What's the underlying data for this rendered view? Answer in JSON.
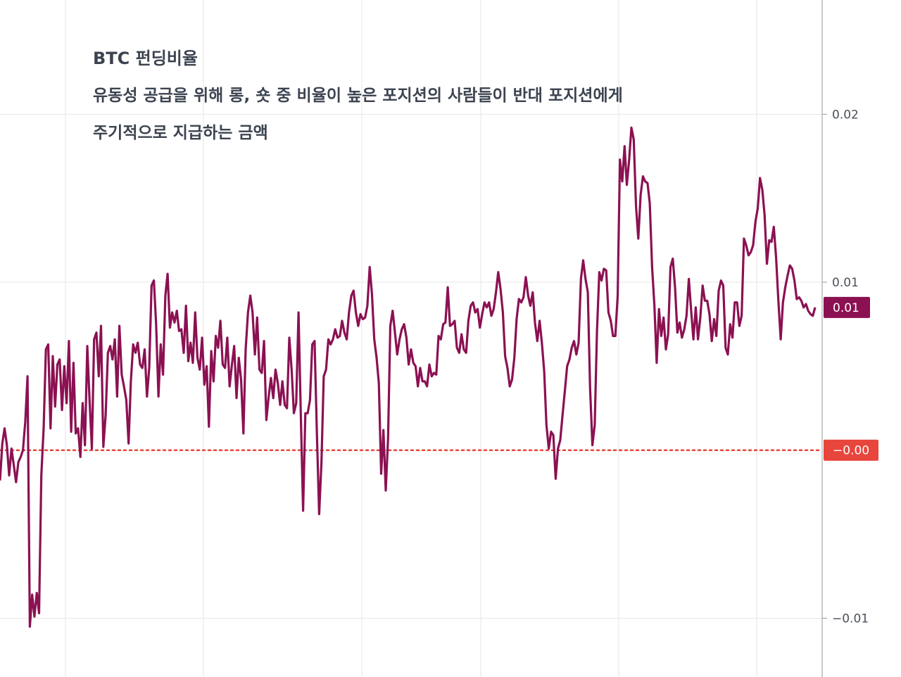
{
  "chart_data": {
    "type": "line",
    "title": "BTC 펀딩비율",
    "subtitle_lines": [
      "유동성 공급을 위해 롱, 숏 중 비율이 높은 포지션의 사람들이 반대 포지션에게",
      "주기적으로 지급하는 금액"
    ],
    "y_ticks": [
      0.02,
      0.01,
      -0.01
    ],
    "y_tick_labels": [
      "0.02",
      "0.01",
      "−0.01"
    ],
    "ylim": [
      -0.0135,
      0.0268
    ],
    "grid": true,
    "current_value": 0.0085,
    "current_value_label": "0.01",
    "reference_value": 0.0,
    "reference_label": "−0.00",
    "colors": {
      "line": "#8b1152",
      "badge": "#8b1152",
      "reference": "#e8453c",
      "grid": "#e6e6e6",
      "axis": "#9a9a9a"
    },
    "series": [
      {
        "values": [
          -0.0018,
          0.0004,
          0.0013,
          0.0003,
          -0.0015,
          0.0001,
          -0.0009,
          -0.0019,
          -0.0007,
          -0.0004,
          0.0,
          0.0017,
          0.0044,
          -0.0105,
          -0.0086,
          -0.0099,
          -0.0085,
          -0.0097,
          -0.0015,
          0.0013,
          0.006,
          0.0063,
          0.0013,
          0.0056,
          0.0026,
          0.0051,
          0.0054,
          0.0024,
          0.005,
          0.0028,
          0.0065,
          0.0011,
          0.0052,
          0.001,
          0.0013,
          -0.0004,
          0.0028,
          0.0003,
          0.0062,
          0.003,
          0.0001,
          0.0066,
          0.007,
          0.0044,
          0.0074,
          0.0002,
          0.0021,
          0.0058,
          0.0062,
          0.0054,
          0.0066,
          0.0032,
          0.0074,
          0.0045,
          0.0038,
          0.003,
          0.0004,
          0.0041,
          0.0063,
          0.0058,
          0.0064,
          0.0051,
          0.0049,
          0.006,
          0.0032,
          0.0049,
          0.0098,
          0.0101,
          0.0075,
          0.0032,
          0.0063,
          0.0045,
          0.0092,
          0.0105,
          0.0073,
          0.0082,
          0.0076,
          0.0083,
          0.0071,
          0.0072,
          0.0058,
          0.0086,
          0.0053,
          0.0064,
          0.0052,
          0.0082,
          0.0055,
          0.0048,
          0.0067,
          0.0039,
          0.005,
          0.0014,
          0.0059,
          0.0041,
          0.0068,
          0.0061,
          0.0077,
          0.0051,
          0.0049,
          0.0067,
          0.0038,
          0.0051,
          0.0062,
          0.0031,
          0.0055,
          0.0042,
          0.001,
          0.006,
          0.0082,
          0.0092,
          0.0082,
          0.0057,
          0.0079,
          0.0048,
          0.0046,
          0.0065,
          0.0018,
          0.0032,
          0.0043,
          0.0031,
          0.0048,
          0.004,
          0.0027,
          0.0041,
          0.0027,
          0.0025,
          0.0067,
          0.0048,
          0.0022,
          0.0028,
          0.0082,
          0.0022,
          -0.0036,
          0.0022,
          0.0022,
          0.003,
          0.0063,
          0.0065,
          0.001,
          -0.0038,
          -0.0007,
          0.0044,
          0.0048,
          0.0066,
          0.0063,
          0.0066,
          0.0072,
          0.0067,
          0.0068,
          0.0077,
          0.007,
          0.0066,
          0.0082,
          0.0092,
          0.0095,
          0.0082,
          0.0074,
          0.0081,
          0.0078,
          0.0079,
          0.0086,
          0.0109,
          0.0093,
          0.0066,
          0.0055,
          0.004,
          -0.0014,
          0.0012,
          -0.0024,
          0.0007,
          0.0074,
          0.0083,
          0.007,
          0.0057,
          0.0066,
          0.0072,
          0.0075,
          0.0067,
          0.0051,
          0.006,
          0.0052,
          0.005,
          0.0038,
          0.0049,
          0.0041,
          0.0041,
          0.0038,
          0.0051,
          0.0044,
          0.0046,
          0.0045,
          0.0068,
          0.0066,
          0.0075,
          0.0076,
          0.0097,
          0.0074,
          0.0075,
          0.0077,
          0.0061,
          0.0058,
          0.0069,
          0.006,
          0.0058,
          0.0077,
          0.0086,
          0.0088,
          0.0082,
          0.0084,
          0.0073,
          0.0081,
          0.0088,
          0.0085,
          0.0088,
          0.008,
          0.0084,
          0.0094,
          0.0106,
          0.0096,
          0.0082,
          0.0056,
          0.0049,
          0.0038,
          0.0042,
          0.0055,
          0.0078,
          0.009,
          0.0088,
          0.0091,
          0.0103,
          0.0092,
          0.0086,
          0.0094,
          0.0076,
          0.0065,
          0.0077,
          0.0064,
          0.0047,
          0.0015,
          0.0001,
          0.0011,
          0.0009,
          -0.0017,
          0.0001,
          0.0006,
          0.0021,
          0.0035,
          0.005,
          0.0054,
          0.0061,
          0.0065,
          0.0057,
          0.0064,
          0.0102,
          0.0113,
          0.0102,
          0.0094,
          0.0037,
          0.0003,
          0.0015,
          0.0071,
          0.0106,
          0.0101,
          0.0108,
          0.0107,
          0.0082,
          0.0077,
          0.0068,
          0.0068,
          0.0092,
          0.0173,
          0.016,
          0.0181,
          0.0158,
          0.0173,
          0.0192,
          0.0185,
          0.0145,
          0.0126,
          0.0152,
          0.0163,
          0.016,
          0.0159,
          0.0147,
          0.0109,
          0.0086,
          0.0052,
          0.0084,
          0.0068,
          0.0079,
          0.006,
          0.0069,
          0.0109,
          0.0114,
          0.0097,
          0.007,
          0.0076,
          0.0067,
          0.0072,
          0.008,
          0.0102,
          0.0083,
          0.0066,
          0.0085,
          0.0066,
          0.0079,
          0.0098,
          0.0089,
          0.0089,
          0.0081,
          0.0065,
          0.0078,
          0.0068,
          0.0095,
          0.0101,
          0.0098,
          0.0061,
          0.0057,
          0.0075,
          0.0067,
          0.0088,
          0.0088,
          0.0074,
          0.008,
          0.0126,
          0.0122,
          0.0116,
          0.0118,
          0.0122,
          0.0136,
          0.0144,
          0.0162,
          0.0155,
          0.014,
          0.0111,
          0.0125,
          0.0124,
          0.0133,
          0.0115,
          0.0089,
          0.0066,
          0.0088,
          0.0097,
          0.0104,
          0.011,
          0.0108,
          0.0101,
          0.009,
          0.0091,
          0.0089,
          0.0085,
          0.0087,
          0.0083,
          0.0081,
          0.008,
          0.0085
        ]
      }
    ]
  }
}
